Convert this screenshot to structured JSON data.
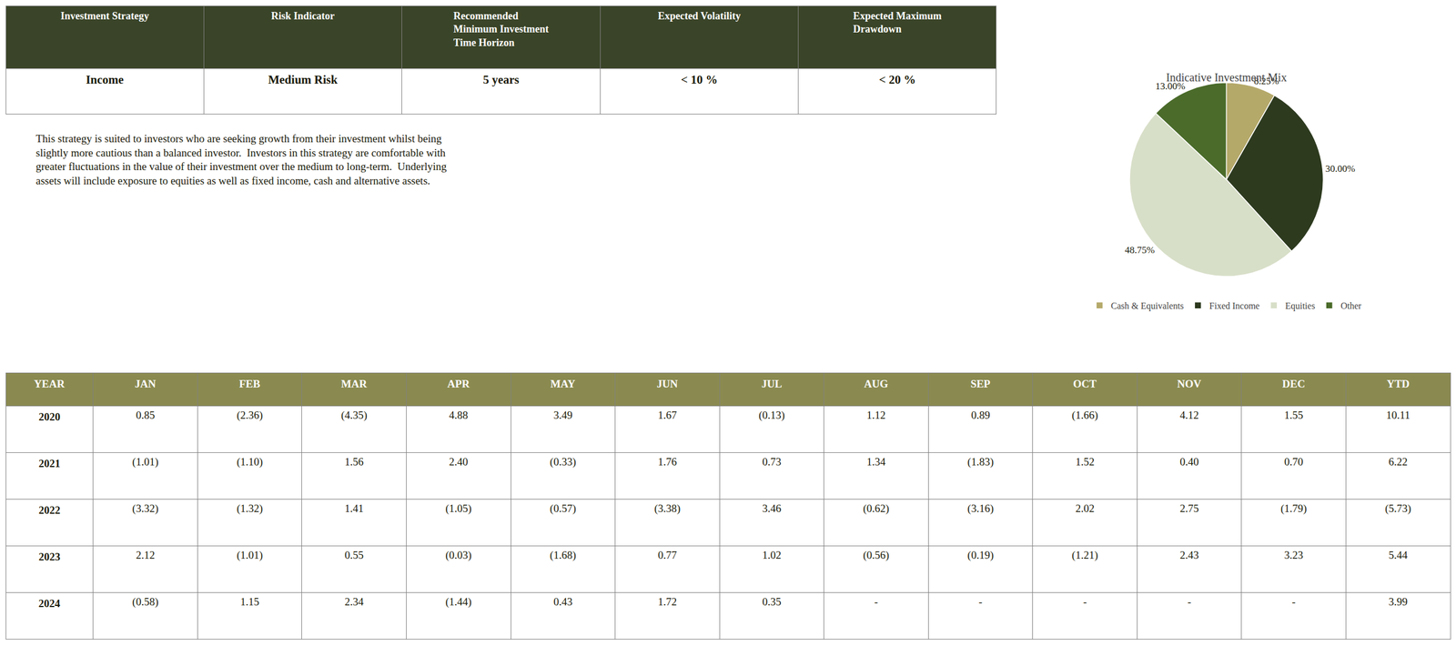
{
  "chart_data": [
    {
      "type": "table",
      "columns": [
        "Investment Strategy",
        "Risk Indicator",
        "Recommended\nMinimum Investment\nTime Horizon",
        "Expected Volatility",
        "Expected Maximum\nDrawdown"
      ],
      "rows": [
        [
          "Income",
          "Medium Risk",
          "5 years",
          "< 10 %",
          "< 20 %"
        ]
      ],
      "annotations": [
        "This strategy is suited to investors who are seeking growth from their investment whilst being\nslightly more cautious than a balanced investor.  Investors in this strategy are comfortable with\ngreater fluctuations in the value of their investment over the medium to long-term.  Underlying\nassets will include exposure to equities as well as fixed income, cash and alternative assets."
      ],
      "color": "#3a4428"
    },
    {
      "type": "pie",
      "title": "Indicative Investment Mix",
      "categories": [
        "Cash & Equivalents",
        "Fixed Income",
        "Equities",
        "Other"
      ],
      "values": [
        8.25,
        30.0,
        48.75,
        13.0
      ],
      "value_labels": [
        "8.25%",
        "30.00%",
        "48.75%",
        "13.00%"
      ],
      "colors": [
        "#b5a96a",
        "#2d3a1e",
        "#d8dfc8",
        "#4a6b2a"
      ],
      "data_labels": true,
      "legend": "bottom"
    },
    {
      "type": "table",
      "columns": [
        "YEAR",
        "JAN",
        "FEB",
        "MAR",
        "APR",
        "MAY",
        "JUN",
        "JUL",
        "AUG",
        "SEP",
        "OCT",
        "NOV",
        "DEC",
        "YTD"
      ],
      "rows": [
        [
          "2020",
          "0.85",
          "(2.36)",
          "(4.35)",
          "4.88",
          "3.49",
          "1.67",
          "(0.13)",
          "1.12",
          "0.89",
          "(1.66)",
          "4.12",
          "1.55",
          "10.11"
        ],
        [
          "2021",
          "(1.01)",
          "(1.10)",
          "1.56",
          "2.40",
          "(0.33)",
          "1.76",
          "0.73",
          "1.34",
          "(1.83)",
          "1.52",
          "0.40",
          "0.70",
          "6.22"
        ],
        [
          "2022",
          "(3.32)",
          "(1.32)",
          "1.41",
          "(1.05)",
          "(0.57)",
          "(3.38)",
          "3.46",
          "(0.62)",
          "(3.16)",
          "2.02",
          "2.75",
          "(1.79)",
          "(5.73)"
        ],
        [
          "2023",
          "2.12",
          "(1.01)",
          "0.55",
          "(0.03)",
          "(1.68)",
          "0.77",
          "1.02",
          "(0.56)",
          "(0.19)",
          "(1.21)",
          "2.43",
          "3.23",
          "5.44"
        ],
        [
          "2024",
          "(0.58)",
          "1.15",
          "2.34",
          "(1.44)",
          "0.43",
          "1.72",
          "0.35",
          "-",
          "-",
          "-",
          "-",
          "-",
          "3.99"
        ]
      ],
      "color": "#8a8a50"
    }
  ]
}
